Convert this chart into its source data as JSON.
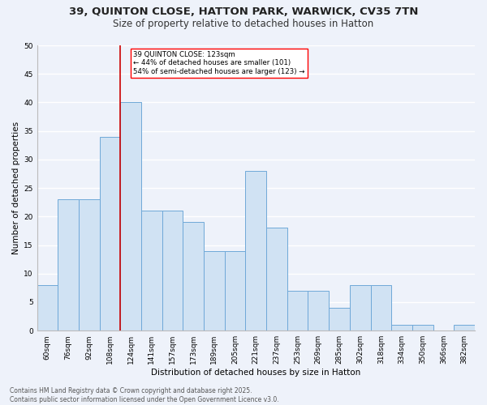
{
  "title_line1": "39, QUINTON CLOSE, HATTON PARK, WARWICK, CV35 7TN",
  "title_line2": "Size of property relative to detached houses in Hatton",
  "xlabel": "Distribution of detached houses by size in Hatton",
  "ylabel": "Number of detached properties",
  "categories": [
    "60sqm",
    "76sqm",
    "92sqm",
    "108sqm",
    "124sqm",
    "141sqm",
    "157sqm",
    "173sqm",
    "189sqm",
    "205sqm",
    "221sqm",
    "237sqm",
    "253sqm",
    "269sqm",
    "285sqm",
    "302sqm",
    "318sqm",
    "334sqm",
    "350sqm",
    "366sqm",
    "382sqm"
  ],
  "values": [
    8,
    23,
    23,
    34,
    40,
    21,
    21,
    19,
    14,
    14,
    28,
    18,
    7,
    7,
    4,
    8,
    8,
    1,
    1,
    0,
    1
  ],
  "bar_color": "#d0e2f3",
  "bar_edge_color": "#6fa8d8",
  "vline_color": "#cc0000",
  "annotation_text": "39 QUINTON CLOSE: 123sqm\n← 44% of detached houses are smaller (101)\n54% of semi-detached houses are larger (123) →",
  "footer_text": "Contains HM Land Registry data © Crown copyright and database right 2025.\nContains public sector information licensed under the Open Government Licence v3.0.",
  "ylim_max": 50,
  "bg_color": "#eef2fa",
  "grid_color": "#ffffff",
  "title_fontsize": 9.5,
  "subtitle_fontsize": 8.5,
  "axis_label_fontsize": 7.5,
  "tick_fontsize": 6.5,
  "footer_fontsize": 5.5
}
